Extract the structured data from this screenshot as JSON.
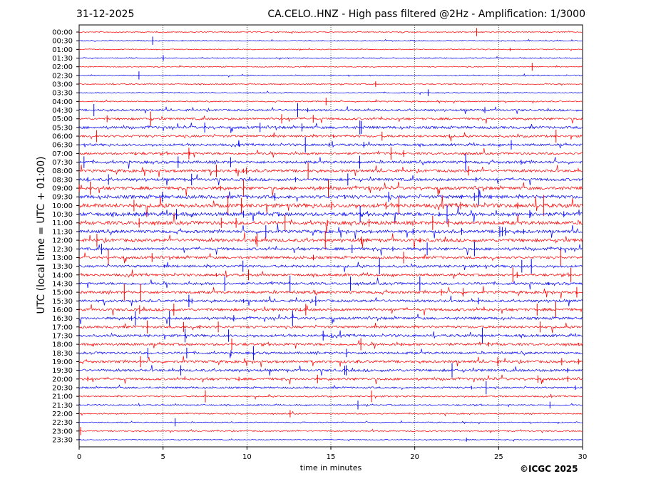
{
  "header": {
    "date": "31-12-2025",
    "title": "CA.CELO..HNZ - High pass filtered @2Hz - Amplification: 1/3000"
  },
  "footer": {
    "copyright": "©ICGC 2025"
  },
  "chart_data": {
    "type": "line",
    "title": "CA.CELO..HNZ - High pass filtered @2Hz - Amplification: 1/3000",
    "xlabel": "time in minutes",
    "ylabel": "UTC (local time = UTC + 01:00)",
    "xlim": [
      0,
      30
    ],
    "xticks": [
      0,
      5,
      10,
      15,
      20,
      25,
      30
    ],
    "grid": "vertical dotted at 5-minute intervals",
    "row_colors": [
      "#ff0000",
      "#0000ff"
    ],
    "rows": [
      {
        "label": "00:00",
        "color": "#ff0000",
        "activity": 0.1
      },
      {
        "label": "00:30",
        "color": "#0000ff",
        "activity": 0.1
      },
      {
        "label": "01:00",
        "color": "#ff0000",
        "activity": 0.1
      },
      {
        "label": "01:30",
        "color": "#0000ff",
        "activity": 0.12
      },
      {
        "label": "02:00",
        "color": "#ff0000",
        "activity": 0.12
      },
      {
        "label": "02:30",
        "color": "#0000ff",
        "activity": 0.12
      },
      {
        "label": "03:00",
        "color": "#ff0000",
        "activity": 0.1
      },
      {
        "label": "03:30",
        "color": "#0000ff",
        "activity": 0.12
      },
      {
        "label": "04:00",
        "color": "#ff0000",
        "activity": 0.15
      },
      {
        "label": "04:30",
        "color": "#0000ff",
        "activity": 0.4
      },
      {
        "label": "05:00",
        "color": "#ff0000",
        "activity": 0.45
      },
      {
        "label": "05:30",
        "color": "#0000ff",
        "activity": 0.55
      },
      {
        "label": "06:00",
        "color": "#ff0000",
        "activity": 0.5
      },
      {
        "label": "06:30",
        "color": "#0000ff",
        "activity": 0.5
      },
      {
        "label": "07:00",
        "color": "#ff0000",
        "activity": 0.5
      },
      {
        "label": "07:30",
        "color": "#0000ff",
        "activity": 0.6
      },
      {
        "label": "08:00",
        "color": "#ff0000",
        "activity": 0.6
      },
      {
        "label": "08:30",
        "color": "#0000ff",
        "activity": 0.6
      },
      {
        "label": "09:00",
        "color": "#ff0000",
        "activity": 0.7
      },
      {
        "label": "09:30",
        "color": "#0000ff",
        "activity": 0.8
      },
      {
        "label": "10:00",
        "color": "#ff0000",
        "activity": 0.95
      },
      {
        "label": "10:30",
        "color": "#0000ff",
        "activity": 0.9
      },
      {
        "label": "11:00",
        "color": "#ff0000",
        "activity": 0.85
      },
      {
        "label": "11:30",
        "color": "#0000ff",
        "activity": 0.7
      },
      {
        "label": "12:00",
        "color": "#ff0000",
        "activity": 0.75
      },
      {
        "label": "12:30",
        "color": "#0000ff",
        "activity": 0.6
      },
      {
        "label": "13:00",
        "color": "#ff0000",
        "activity": 0.55
      },
      {
        "label": "13:30",
        "color": "#0000ff",
        "activity": 0.55
      },
      {
        "label": "14:00",
        "color": "#ff0000",
        "activity": 0.55
      },
      {
        "label": "14:30",
        "color": "#0000ff",
        "activity": 0.55
      },
      {
        "label": "15:00",
        "color": "#ff0000",
        "activity": 0.6
      },
      {
        "label": "15:30",
        "color": "#0000ff",
        "activity": 0.55
      },
      {
        "label": "16:00",
        "color": "#ff0000",
        "activity": 0.6
      },
      {
        "label": "16:30",
        "color": "#0000ff",
        "activity": 0.55
      },
      {
        "label": "17:00",
        "color": "#ff0000",
        "activity": 0.55
      },
      {
        "label": "17:30",
        "color": "#0000ff",
        "activity": 0.55
      },
      {
        "label": "18:00",
        "color": "#ff0000",
        "activity": 0.55
      },
      {
        "label": "18:30",
        "color": "#0000ff",
        "activity": 0.5
      },
      {
        "label": "19:00",
        "color": "#ff0000",
        "activity": 0.55
      },
      {
        "label": "19:30",
        "color": "#0000ff",
        "activity": 0.55
      },
      {
        "label": "20:00",
        "color": "#ff0000",
        "activity": 0.5
      },
      {
        "label": "20:30",
        "color": "#0000ff",
        "activity": 0.35
      },
      {
        "label": "21:00",
        "color": "#ff0000",
        "activity": 0.25
      },
      {
        "label": "21:30",
        "color": "#0000ff",
        "activity": 0.2
      },
      {
        "label": "22:00",
        "color": "#ff0000",
        "activity": 0.18
      },
      {
        "label": "22:30",
        "color": "#0000ff",
        "activity": 0.12
      },
      {
        "label": "23:00",
        "color": "#ff0000",
        "activity": 0.15
      },
      {
        "label": "23:30",
        "color": "#0000ff",
        "activity": 0.1
      }
    ]
  }
}
